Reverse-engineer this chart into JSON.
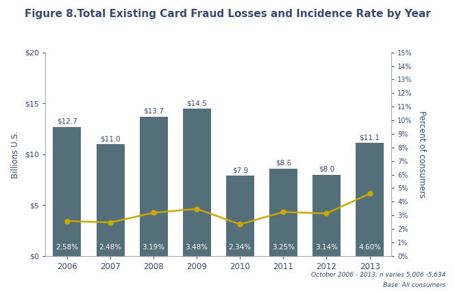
{
  "title": "Figure 8.Total Existing Card Fraud Losses and Incidence Rate by Year",
  "years": [
    2006,
    2007,
    2008,
    2009,
    2010,
    2011,
    2012,
    2013
  ],
  "bar_values": [
    12.7,
    11.0,
    13.7,
    14.5,
    7.9,
    8.6,
    8.0,
    11.1
  ],
  "bar_labels": [
    "$12.7",
    "$11.0",
    "$13.7",
    "$14.5",
    "$7.9",
    "$8.6",
    "$8.0",
    "$11.1"
  ],
  "line_values": [
    2.58,
    2.48,
    3.19,
    3.48,
    2.34,
    3.25,
    3.14,
    4.6
  ],
  "line_labels": [
    "2.58%",
    "2.48%",
    "3.19%",
    "3.48%",
    "2.34%",
    "3.25%",
    "3.14%",
    "4.60%"
  ],
  "bar_color": "#546E7A",
  "line_color": "#C9A800",
  "title_color": "#3A4A6B",
  "ylabel_left": "Billions U.S.",
  "ylabel_right": "Percent of consumers",
  "ylim_left": [
    0,
    20
  ],
  "ylim_right": [
    0,
    15
  ],
  "yticks_left": [
    0,
    5,
    10,
    15,
    20
  ],
  "ytick_labels_left": [
    "$0",
    "$5",
    "$10",
    "$15",
    "$20"
  ],
  "yticks_right": [
    0,
    1,
    2,
    3,
    4,
    5,
    6,
    7,
    8,
    9,
    10,
    11,
    12,
    13,
    14,
    15
  ],
  "ytick_labels_right": [
    "0%",
    "1%",
    "2%",
    "3%",
    "4%",
    "5%",
    "6%",
    "7%",
    "8%",
    "9%",
    "10%",
    "11%",
    "12%",
    "13%",
    "14%",
    "15%"
  ],
  "footnote_line1": "October 2006 - 2013, n varies 5,006 -5,634",
  "footnote_line2": "Base: All consumers",
  "bg_color": "#FFFFFF",
  "axis_label_color": "#3A4A6B",
  "tick_label_color": "#3A4A6B",
  "footnote_color": "#3A4A6B"
}
